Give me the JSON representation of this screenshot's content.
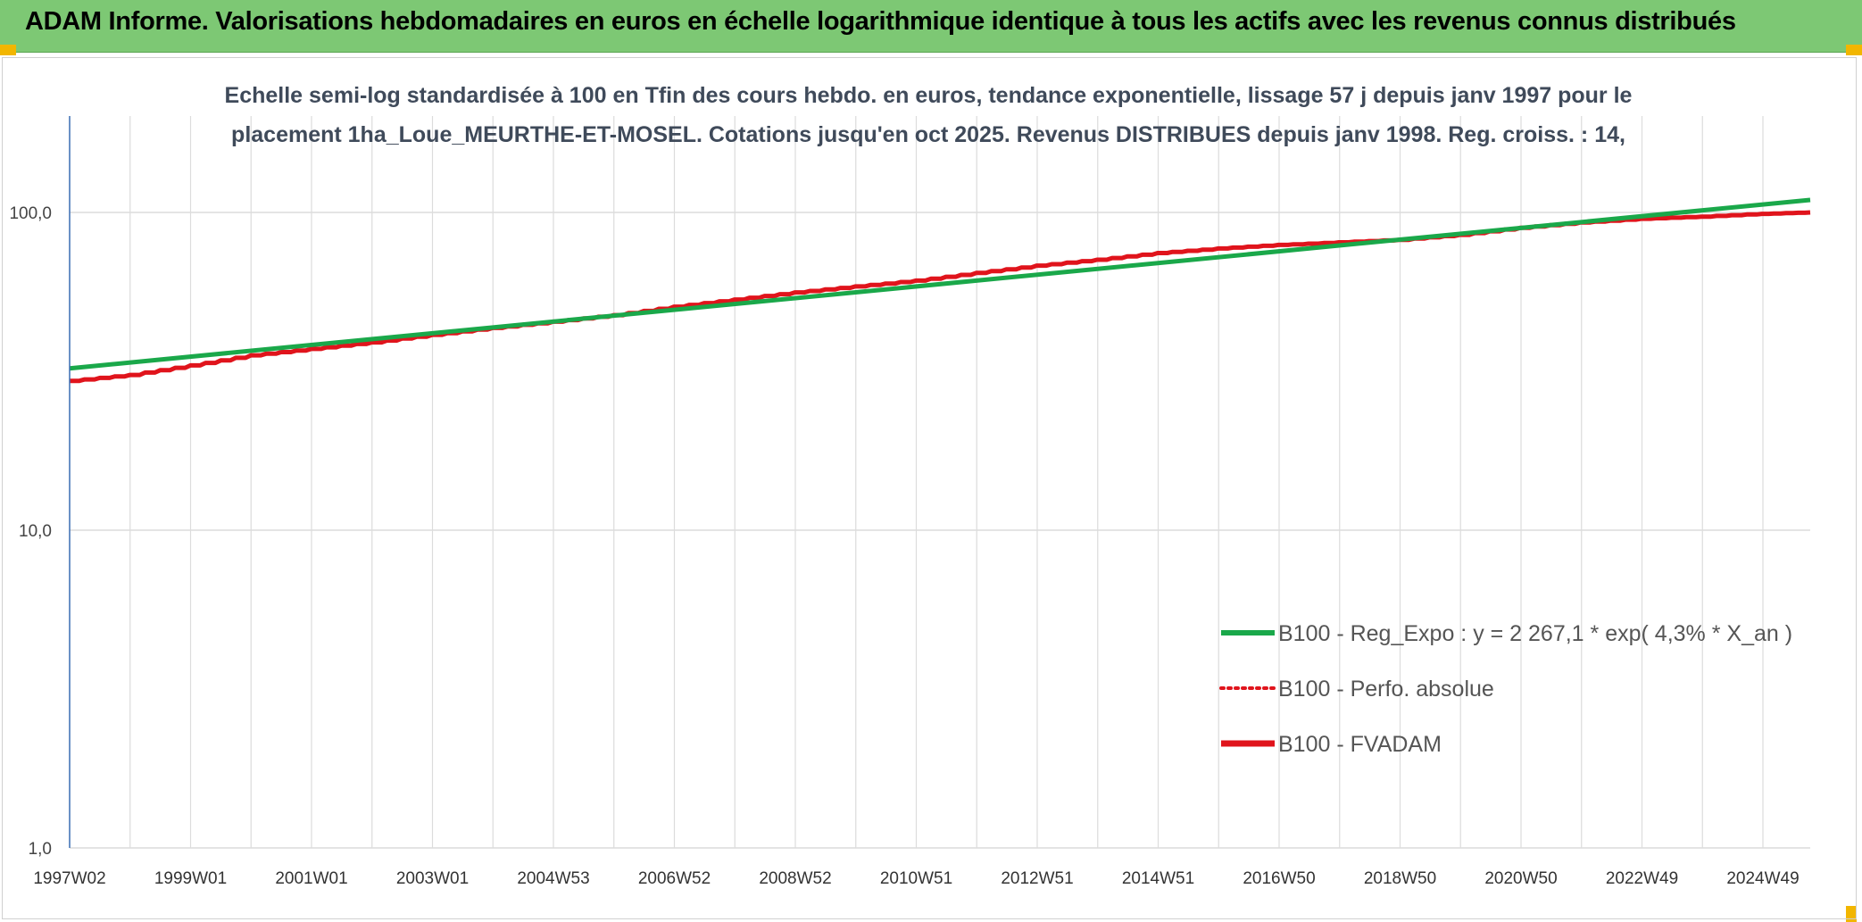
{
  "header": {
    "title": "ADAM Informe. Valorisations hebdomadaires en euros en échelle logarithmique identique à tous les actifs avec les revenus connus distribués"
  },
  "colors": {
    "header_bg": "#7dc874",
    "reg_expo": "#1aa84a",
    "perfo": "#e0141c",
    "fvadam": "#e0141c",
    "grid": "#dcdcdc",
    "axis": "#3c6fb5"
  },
  "chart_data": {
    "type": "line",
    "title_lines": [
      "Echelle semi-log standardisée à 100 en Tfin des cours hebdo. en euros, tendance exponentielle, lissage 57 j depuis janv 1997 pour le",
      "placement 1ha_Loue_MEURTHE-ET-MOSEL. Cotations jusqu'en oct 2025. Revenus DISTRIBUES depuis janv 1998. Reg. croiss. : 14,"
    ],
    "y_scale": "log",
    "ylim": [
      1,
      200
    ],
    "y_ticks": [
      {
        "value": 1,
        "label": "1,0"
      },
      {
        "value": 10,
        "label": "10,0"
      },
      {
        "value": 100,
        "label": "100,0"
      }
    ],
    "xlim": [
      1997.0,
      2025.8
    ],
    "x_tick_labels": [
      "1997W02",
      "1999W01",
      "2001W01",
      "2003W01",
      "2004W53",
      "2006W52",
      "2008W52",
      "2010W51",
      "2012W51",
      "2014W51",
      "2016W50",
      "2018W50",
      "2020W50",
      "2022W49",
      "2024W49"
    ],
    "legend_position": "bottom-right",
    "series": [
      {
        "name": "B100 - Reg_Expo : y = 2 267,1 * exp( 4,3% *  X_an )",
        "style": "solid-thin",
        "x": [
          1997.0,
          2025.8
        ],
        "values": [
          32.3,
          109.5
        ]
      },
      {
        "name": "B100 - Perfo. absolue",
        "style": "dotted",
        "x": [
          1997.0,
          1998.0,
          1999.0,
          2000.0,
          2001.0,
          2002.0,
          2003.0,
          2004.0,
          2005.0,
          2006.0,
          2007.0,
          2008.0,
          2009.0,
          2010.0,
          2011.0,
          2012.0,
          2013.0,
          2014.0,
          2015.0,
          2016.0,
          2017.0,
          2018.0,
          2019.0,
          2020.0,
          2021.0,
          2022.0,
          2023.0,
          2024.0,
          2025.0,
          2025.8
        ],
        "values": [
          29.5,
          30.8,
          33.0,
          35.5,
          37.2,
          39.0,
          41.2,
          43.3,
          45.3,
          47.5,
          50.5,
          53.2,
          56.0,
          58.5,
          61.0,
          64.5,
          68.0,
          71.0,
          74.5,
          77.0,
          79.0,
          80.5,
          82.0,
          85.0,
          89.5,
          93.0,
          95.5,
          97.0,
          99.0,
          100.0
        ]
      },
      {
        "name": "B100 - FVADAM",
        "style": "solid-thick",
        "x": [
          1997.0,
          1998.0,
          1999.0,
          2000.0,
          2001.0,
          2002.0,
          2003.0,
          2004.0,
          2005.0,
          2006.0,
          2007.0,
          2008.0,
          2009.0,
          2010.0,
          2011.0,
          2012.0,
          2013.0,
          2014.0,
          2015.0,
          2016.0,
          2017.0,
          2018.0,
          2019.0,
          2020.0,
          2021.0,
          2022.0,
          2023.0,
          2024.0,
          2025.0,
          2025.8
        ],
        "values": [
          29.5,
          30.8,
          33.0,
          35.5,
          37.2,
          39.0,
          41.2,
          43.3,
          45.3,
          47.5,
          50.5,
          53.2,
          56.0,
          58.5,
          61.0,
          64.5,
          68.0,
          71.0,
          74.5,
          77.0,
          79.0,
          80.5,
          82.0,
          85.0,
          89.5,
          93.0,
          95.5,
          97.0,
          99.0,
          100.0
        ]
      }
    ]
  }
}
